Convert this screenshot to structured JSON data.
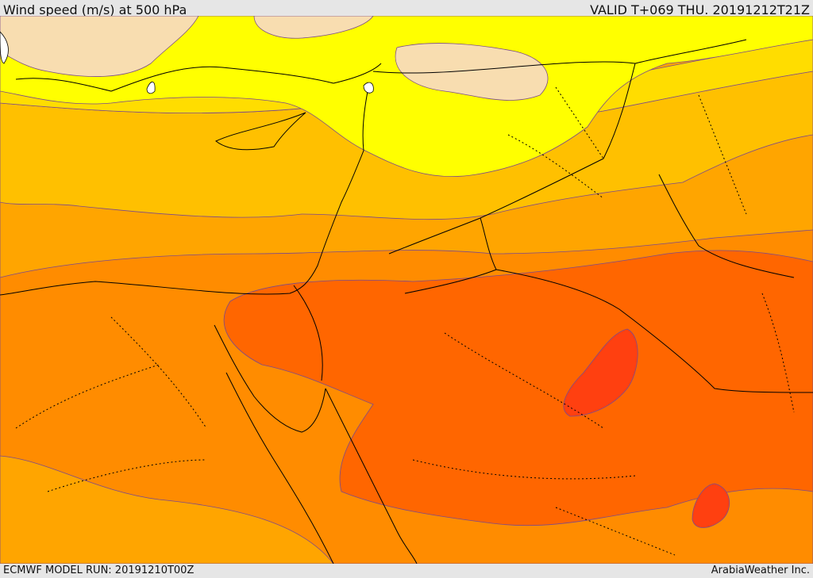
{
  "header": {
    "title": "Wind speed (m/s) at 500 hPa",
    "valid": "VALID T+069 THU. 20191212T21Z"
  },
  "footer": {
    "model_run": "ECMWF MODEL RUN: 20191210T00Z",
    "brand": "ArabiaWeather Inc."
  },
  "map": {
    "variable": "wind speed",
    "level": "500 hPa",
    "palette": {
      "lightest": "#f8ddb0",
      "light_yellow": "#ffff00",
      "yellow_gold": "#ffdd00",
      "gold": "#ffc000",
      "light_orange": "#ffa500",
      "orange": "#ff8c00",
      "dark_orange": "#ff6600",
      "red_orange": "#ff4010",
      "land_outline": "#000000",
      "contour": "#7b4a8c"
    }
  }
}
